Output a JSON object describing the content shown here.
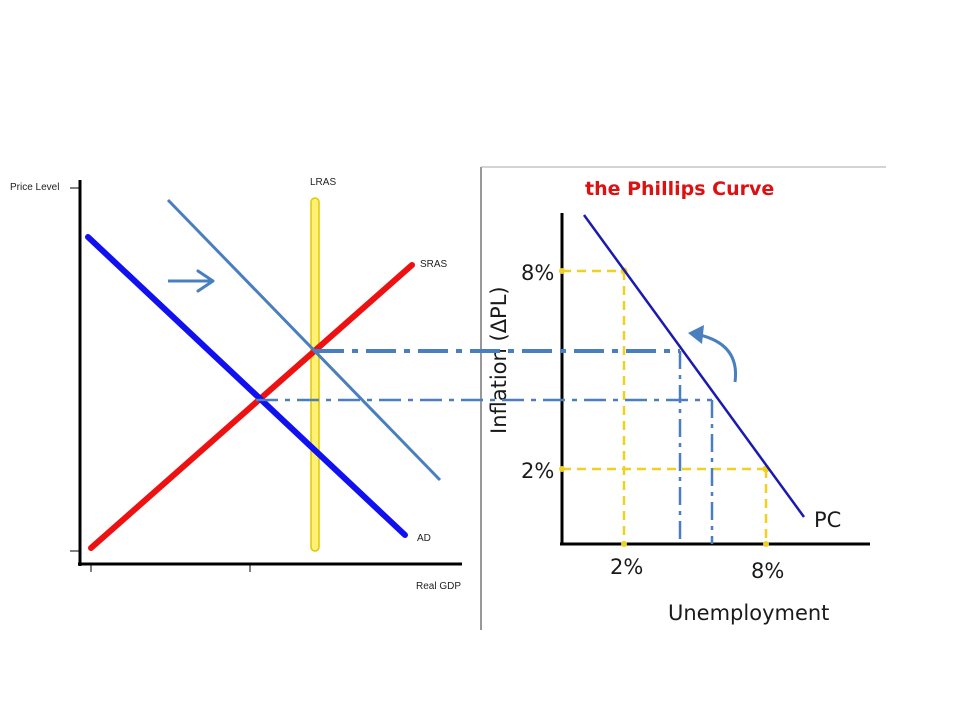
{
  "ad_as_diagram": {
    "y_axis_label": "Price Level",
    "x_axis_label": "Real GDP",
    "curve_labels": {
      "lras": "LRAS",
      "sras": "SRAS",
      "ad": "AD"
    },
    "colors": {
      "ad": "#1010f0",
      "ad_shifted": "#4a7fbf",
      "sras": "#ee1111",
      "lras_fill": "#fff176",
      "lras_stroke": "#e0c800",
      "shift_arrow": "#4a7fbf"
    }
  },
  "phillips_diagram": {
    "title": "the Phillips Curve",
    "y_axis_label": "Inflation (ΔPL)",
    "x_axis_label": "Unemployment",
    "curve_label": "PC",
    "y_ticks": [
      "8%",
      "2%"
    ],
    "x_ticks": [
      "2%",
      "8%"
    ],
    "colors": {
      "title": "#dd1111",
      "curve": "#1a1ab0",
      "guides": "#f0d020",
      "arrow": "#4a7fbf"
    }
  },
  "connector_colors": {
    "dash_dot": "#4a7fbf"
  }
}
